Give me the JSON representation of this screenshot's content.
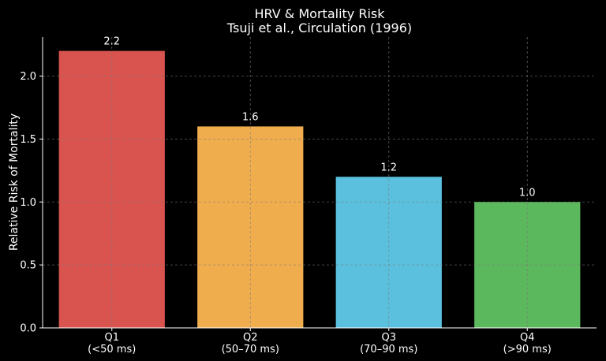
{
  "chart_data": {
    "type": "bar",
    "title": "HRV & Mortality Risk",
    "subtitle": "Tsuji et al., Circulation (1996)",
    "xlabel": "",
    "ylabel": "Relative Risk of Mortality",
    "categories": [
      "Q1\n(<50 ms)",
      "Q2\n(50–70 ms)",
      "Q3\n(70–90 ms)",
      "Q4\n(>90 ms)"
    ],
    "values": [
      2.2,
      1.6,
      1.2,
      1.0
    ],
    "data_labels": [
      "2.2",
      "1.6",
      "1.2",
      "1.0"
    ],
    "colors": [
      "#d9534f",
      "#f0ad4e",
      "#5bc0de",
      "#5cb85c"
    ],
    "ylim": [
      0,
      2.31
    ],
    "yticks": [
      0.0,
      0.5,
      1.0,
      1.5,
      2.0
    ],
    "ytick_labels": [
      "0.0",
      "0.5",
      "1.0",
      "1.5",
      "2.0"
    ],
    "grid": true,
    "legend": false,
    "background": "#000000"
  }
}
